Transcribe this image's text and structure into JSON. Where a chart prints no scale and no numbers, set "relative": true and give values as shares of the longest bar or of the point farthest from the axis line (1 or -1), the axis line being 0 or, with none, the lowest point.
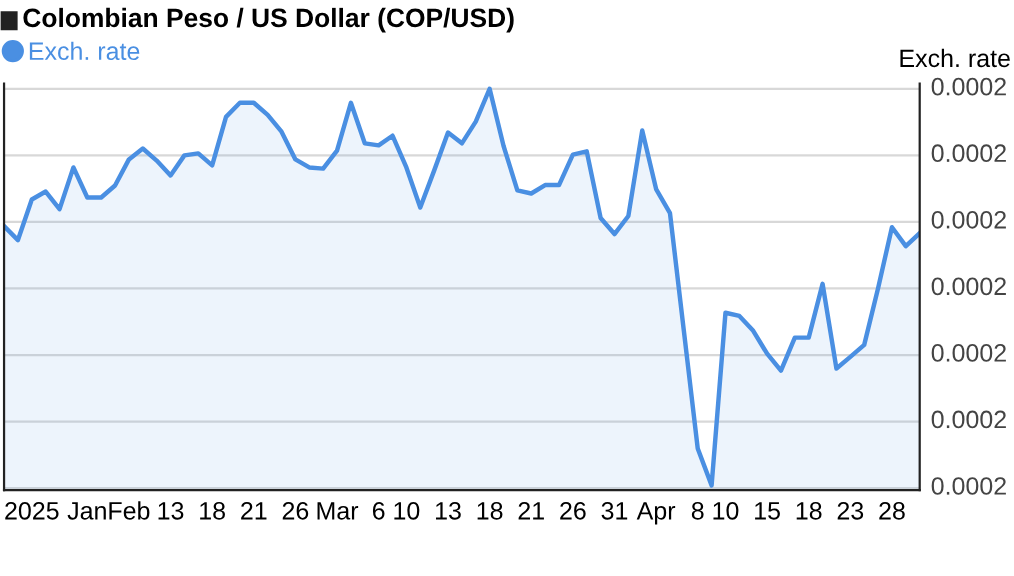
{
  "chart_data": {
    "type": "area",
    "title": "Colombian Peso / US Dollar (COP/USD)",
    "ylabel": "Exch. rate",
    "relative": true,
    "categories": [
      null,
      null,
      "2025",
      null,
      null,
      null,
      "Jan",
      null,
      null,
      "Feb",
      null,
      null,
      "13",
      null,
      null,
      "18",
      null,
      null,
      "21",
      null,
      null,
      "26",
      null,
      null,
      "Mar",
      null,
      null,
      "6",
      null,
      "10",
      null,
      null,
      "13",
      null,
      null,
      "18",
      null,
      null,
      "21",
      null,
      null,
      "26",
      null,
      null,
      "31",
      null,
      null,
      "Apr",
      null,
      null,
      "8",
      null,
      "10",
      null,
      null,
      "15",
      null,
      null,
      "18",
      null,
      null,
      "23",
      null,
      null,
      "28",
      null,
      null
    ],
    "series": [
      {
        "name": "Exch. rate",
        "color": "#4a8fe2",
        "values": [
          0.658,
          0.623,
          0.724,
          0.744,
          0.7,
          0.804,
          0.729,
          0.729,
          0.759,
          0.824,
          0.851,
          0.821,
          0.784,
          0.834,
          0.839,
          0.809,
          0.93,
          0.965,
          0.965,
          0.935,
          0.893,
          0.824,
          0.804,
          0.801,
          0.846,
          0.965,
          0.864,
          0.859,
          0.883,
          0.804,
          0.704,
          0.796,
          0.891,
          0.864,
          0.918,
          1.0,
          0.858,
          0.747,
          0.739,
          0.76,
          0.76,
          0.836,
          0.844,
          0.678,
          0.638,
          0.683,
          0.896,
          0.75,
          0.69,
          0.397,
          0.104,
          0.012,
          0.442,
          0.434,
          0.397,
          0.34,
          0.298,
          0.38,
          0.38,
          0.514,
          0.303,
          0.332,
          0.362,
          0.503,
          0.655,
          0.608,
          0.64
        ]
      }
    ],
    "annotations": [
      "0.0002",
      "0.0002",
      "0.0002",
      "0.0002",
      "0.0002",
      "0.0002",
      "0.0002"
    ],
    "grid": "y",
    "legend": "top left",
    "marker": "none",
    "line_style": "solid"
  }
}
